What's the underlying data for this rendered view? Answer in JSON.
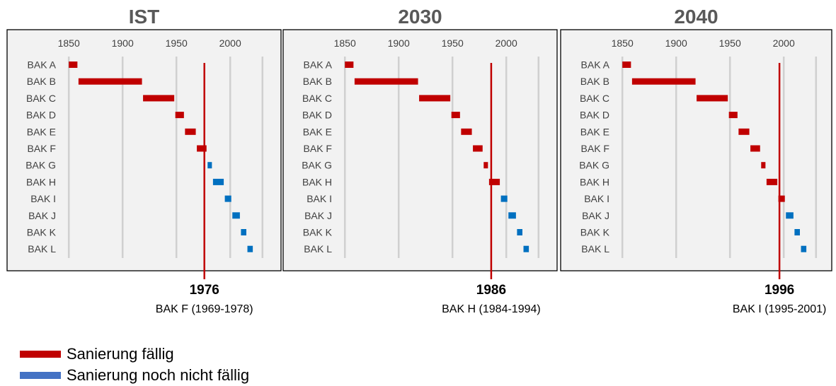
{
  "chart_data": [
    {
      "type": "range-bar",
      "title": "IST",
      "x_ticks": [
        1850,
        1900,
        1950,
        2000
      ],
      "xlim": [
        1840,
        2030
      ],
      "categories": [
        "BAK A",
        "BAK B",
        "BAK C",
        "BAK D",
        "BAK E",
        "BAK F",
        "BAK G",
        "BAK H",
        "BAK I",
        "BAK J",
        "BAK K",
        "BAK L"
      ],
      "bars": [
        {
          "category": "BAK A",
          "start": 1850,
          "end": 1858,
          "status": "due"
        },
        {
          "category": "BAK B",
          "start": 1859,
          "end": 1918,
          "status": "due"
        },
        {
          "category": "BAK C",
          "start": 1919,
          "end": 1948,
          "status": "due"
        },
        {
          "category": "BAK D",
          "start": 1949,
          "end": 1957,
          "status": "due"
        },
        {
          "category": "BAK E",
          "start": 1958,
          "end": 1968,
          "status": "due"
        },
        {
          "category": "BAK F",
          "start": 1969,
          "end": 1978,
          "status": "due"
        },
        {
          "category": "BAK G",
          "start": 1979,
          "end": 1983,
          "status": "not_due"
        },
        {
          "category": "BAK H",
          "start": 1984,
          "end": 1994,
          "status": "not_due"
        },
        {
          "category": "BAK I",
          "start": 1995,
          "end": 2001,
          "status": "not_due"
        },
        {
          "category": "BAK J",
          "start": 2002,
          "end": 2009,
          "status": "not_due"
        },
        {
          "category": "BAK K",
          "start": 2010,
          "end": 2015,
          "status": "not_due"
        },
        {
          "category": "BAK L",
          "start": 2016,
          "end": 2021,
          "status": "not_due"
        }
      ],
      "marker_year": 1976,
      "marker_label": "1976",
      "marker_caption": "BAK F (1969-1978)"
    },
    {
      "type": "range-bar",
      "title": "2030",
      "x_ticks": [
        1850,
        1900,
        1950,
        2000
      ],
      "xlim": [
        1840,
        2030
      ],
      "categories": [
        "BAK A",
        "BAK B",
        "BAK C",
        "BAK D",
        "BAK E",
        "BAK F",
        "BAK G",
        "BAK H",
        "BAK I",
        "BAK J",
        "BAK K",
        "BAK L"
      ],
      "bars": [
        {
          "category": "BAK A",
          "start": 1850,
          "end": 1858,
          "status": "due"
        },
        {
          "category": "BAK B",
          "start": 1859,
          "end": 1918,
          "status": "due"
        },
        {
          "category": "BAK C",
          "start": 1919,
          "end": 1948,
          "status": "due"
        },
        {
          "category": "BAK D",
          "start": 1949,
          "end": 1957,
          "status": "due"
        },
        {
          "category": "BAK E",
          "start": 1958,
          "end": 1968,
          "status": "due"
        },
        {
          "category": "BAK F",
          "start": 1969,
          "end": 1978,
          "status": "due"
        },
        {
          "category": "BAK G",
          "start": 1979,
          "end": 1983,
          "status": "due"
        },
        {
          "category": "BAK H",
          "start": 1984,
          "end": 1994,
          "status": "due"
        },
        {
          "category": "BAK I",
          "start": 1995,
          "end": 2001,
          "status": "not_due"
        },
        {
          "category": "BAK J",
          "start": 2002,
          "end": 2009,
          "status": "not_due"
        },
        {
          "category": "BAK K",
          "start": 2010,
          "end": 2015,
          "status": "not_due"
        },
        {
          "category": "BAK L",
          "start": 2016,
          "end": 2021,
          "status": "not_due"
        }
      ],
      "marker_year": 1986,
      "marker_label": "1986",
      "marker_caption": "BAK H (1984-1994)"
    },
    {
      "type": "range-bar",
      "title": "2040",
      "x_ticks": [
        1850,
        1900,
        1950,
        2000
      ],
      "xlim": [
        1840,
        2030
      ],
      "categories": [
        "BAK A",
        "BAK B",
        "BAK C",
        "BAK D",
        "BAK E",
        "BAK F",
        "BAK G",
        "BAK H",
        "BAK I",
        "BAK J",
        "BAK K",
        "BAK L"
      ],
      "bars": [
        {
          "category": "BAK A",
          "start": 1850,
          "end": 1858,
          "status": "due"
        },
        {
          "category": "BAK B",
          "start": 1859,
          "end": 1918,
          "status": "due"
        },
        {
          "category": "BAK C",
          "start": 1919,
          "end": 1948,
          "status": "due"
        },
        {
          "category": "BAK D",
          "start": 1949,
          "end": 1957,
          "status": "due"
        },
        {
          "category": "BAK E",
          "start": 1958,
          "end": 1968,
          "status": "due"
        },
        {
          "category": "BAK F",
          "start": 1969,
          "end": 1978,
          "status": "due"
        },
        {
          "category": "BAK G",
          "start": 1979,
          "end": 1983,
          "status": "due"
        },
        {
          "category": "BAK H",
          "start": 1984,
          "end": 1994,
          "status": "due"
        },
        {
          "category": "BAK I",
          "start": 1995,
          "end": 2001,
          "status": "due"
        },
        {
          "category": "BAK J",
          "start": 2002,
          "end": 2009,
          "status": "not_due"
        },
        {
          "category": "BAK K",
          "start": 2010,
          "end": 2015,
          "status": "not_due"
        },
        {
          "category": "BAK L",
          "start": 2016,
          "end": 2021,
          "status": "not_due"
        }
      ],
      "marker_year": 1996,
      "marker_label": "1996",
      "marker_caption": "BAK I (1995-2001)"
    }
  ],
  "legend": {
    "due_label": "Sanierung fällig",
    "not_due_label": "Sanierung noch nicht fällig"
  },
  "colors": {
    "due": "#c00000",
    "not_due": "#0070c0",
    "legend_not_due": "#4472c4",
    "marker": "#c00000",
    "panel_bg": "#f2f2f2",
    "gridline": "#d0d0d0",
    "title": "#595959"
  }
}
